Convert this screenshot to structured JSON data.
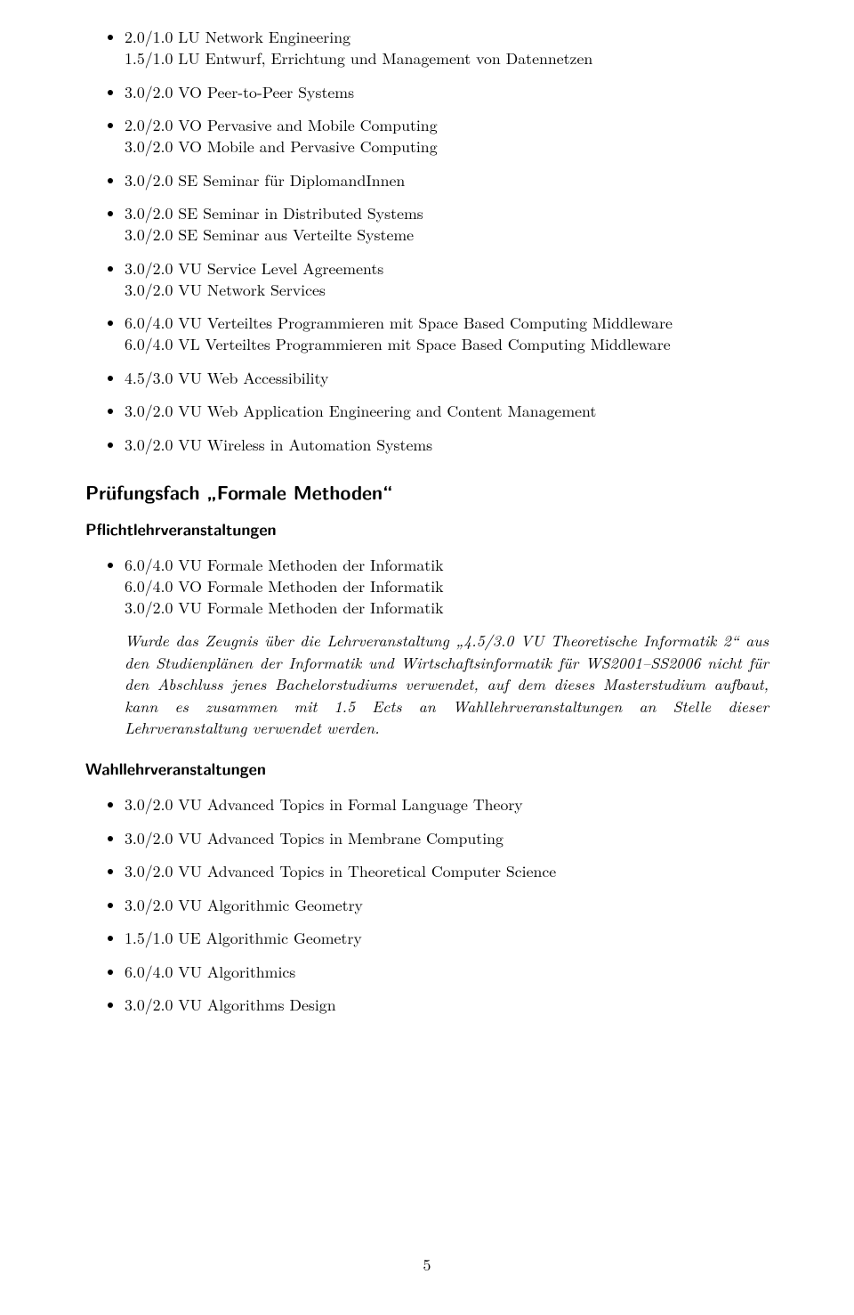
{
  "top_list": [
    {
      "lines": [
        "2.0/1.0 LU Network Engineering",
        "1.5/1.0 LU Entwurf, Errichtung und Management von Datennetzen"
      ]
    },
    {
      "lines": [
        "3.0/2.0 VO Peer-to-Peer Systems"
      ]
    },
    {
      "lines": [
        "2.0/2.0 VO Pervasive and Mobile Computing",
        "3.0/2.0 VO Mobile and Pervasive Computing"
      ]
    },
    {
      "lines": [
        "3.0/2.0 SE Seminar für DiplomandInnen"
      ]
    },
    {
      "lines": [
        "3.0/2.0 SE Seminar in Distributed Systems",
        "3.0/2.0 SE Seminar aus Verteilte Systeme"
      ]
    },
    {
      "lines": [
        "3.0/2.0 VU Service Level Agreements",
        "3.0/2.0 VU Network Services"
      ]
    },
    {
      "lines": [
        "6.0/4.0 VU Verteiltes Programmieren mit Space Based Computing Middleware",
        "6.0/4.0 VL Verteiltes Programmieren mit Space Based Computing Middleware"
      ]
    },
    {
      "lines": [
        "4.5/3.0 VU Web Accessibility"
      ]
    },
    {
      "lines": [
        "3.0/2.0 VU Web Application Engineering and Content Management"
      ]
    },
    {
      "lines": [
        "3.0/2.0 VU Wireless in Automation Systems"
      ]
    }
  ],
  "section_heading": "Prüfungsfach „Formale Methoden“",
  "pflicht_heading": "Pflichtlehrveranstaltungen",
  "pflicht_list": [
    {
      "lines": [
        "6.0/4.0 VU Formale Methoden der Informatik",
        "6.0/4.0 VO Formale Methoden der Informatik",
        "3.0/2.0 VU Formale Methoden der Informatik"
      ]
    }
  ],
  "note_text": "Wurde das Zeugnis über die Lehrveranstaltung „4.5/3.0 VU Theoretische Informatik 2“ aus den Studienplänen der Informatik und Wirtschaftsinformatik für WS2001–SS2006 nicht für den Abschluss jenes Bachelorstudiums verwendet, auf dem dieses Masterstudium aufbaut, kann es zusammen mit 1.5 Ects an Wahllehrveranstaltungen an Stelle dieser Lehrveranstaltung verwendet werden.",
  "wahl_heading": "Wahllehrveranstaltungen",
  "wahl_list": [
    {
      "lines": [
        "3.0/2.0 VU Advanced Topics in Formal Language Theory"
      ]
    },
    {
      "lines": [
        "3.0/2.0 VU Advanced Topics in Membrane Computing"
      ]
    },
    {
      "lines": [
        "3.0/2.0 VU Advanced Topics in Theoretical Computer Science"
      ]
    },
    {
      "lines": [
        "3.0/2.0 VU Algorithmic Geometry"
      ]
    },
    {
      "lines": [
        "1.5/1.0 UE Algorithmic Geometry"
      ]
    },
    {
      "lines": [
        "6.0/4.0 VU Algorithmics"
      ]
    },
    {
      "lines": [
        "3.0/2.0 VU Algorithms Design"
      ]
    }
  ],
  "page_number": "5"
}
